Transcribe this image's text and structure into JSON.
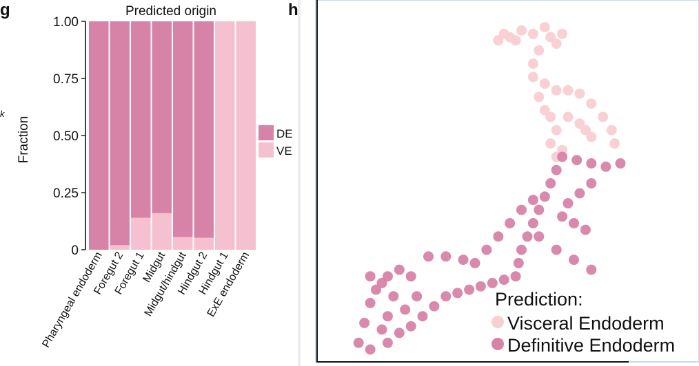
{
  "stray_mark": "k",
  "chart_data": [
    {
      "type": "bar",
      "panel_letter": "g",
      "title": "Predicted origin",
      "xlabel": "",
      "ylabel": "Fraction",
      "ylim": [
        0,
        1
      ],
      "yticks": [
        "0",
        "0.25",
        "0.50",
        "0.75",
        "1.00"
      ],
      "stacked": true,
      "grid": false,
      "legend_position": "right",
      "categories": [
        "Pharyngeal endoderm",
        "Foregut 2",
        "Foregut 1",
        "Midgut",
        "Midgut/hindgut",
        "Hindgut 2",
        "Hindgut 1",
        "ExE endoderm"
      ],
      "series": [
        {
          "name": "DE",
          "color": "#d783a8",
          "values": [
            1.0,
            0.98,
            0.86,
            0.84,
            0.945,
            0.948,
            0.0,
            0.0
          ]
        },
        {
          "name": "VE",
          "color": "#f5c0cf",
          "values": [
            0.0,
            0.02,
            0.14,
            0.16,
            0.055,
            0.052,
            1.0,
            1.0
          ]
        }
      ]
    },
    {
      "type": "scatter",
      "panel_letter": "h",
      "title": "",
      "xlabel": "",
      "ylabel": "",
      "grid": false,
      "legend_title": "Prediction:",
      "legend_position": "bottom-right",
      "series": [
        {
          "name": "Visceral Endoderm",
          "color": "#f9cfd3",
          "points": [
            [
              0.58,
              0.93
            ],
            [
              0.6,
              0.95
            ],
            [
              0.62,
              0.94
            ],
            [
              0.64,
              0.93
            ],
            [
              0.66,
              0.96
            ],
            [
              0.7,
              0.95
            ],
            [
              0.74,
              0.97
            ],
            [
              0.76,
              0.94
            ],
            [
              0.78,
              0.92
            ],
            [
              0.8,
              0.95
            ],
            [
              0.72,
              0.9
            ],
            [
              0.7,
              0.86
            ],
            [
              0.7,
              0.82
            ],
            [
              0.74,
              0.8
            ],
            [
              0.78,
              0.78
            ],
            [
              0.82,
              0.78
            ],
            [
              0.86,
              0.77
            ],
            [
              0.9,
              0.74
            ],
            [
              0.94,
              0.7
            ],
            [
              0.97,
              0.66
            ],
            [
              0.98,
              0.62
            ],
            [
              0.72,
              0.76
            ],
            [
              0.74,
              0.72
            ],
            [
              0.76,
              0.7
            ],
            [
              0.78,
              0.66
            ],
            [
              0.82,
              0.7
            ],
            [
              0.86,
              0.68
            ],
            [
              0.88,
              0.66
            ],
            [
              0.9,
              0.64
            ],
            [
              0.76,
              0.62
            ],
            [
              0.8,
              0.6
            ],
            [
              0.78,
              0.58
            ]
          ]
        },
        {
          "name": "Definitive Endoderm",
          "color": "#d783a8",
          "points": [
            [
              0.8,
              0.58
            ],
            [
              0.85,
              0.57
            ],
            [
              0.9,
              0.56
            ],
            [
              0.95,
              0.55
            ],
            [
              1.0,
              0.56
            ],
            [
              0.78,
              0.54
            ],
            [
              0.76,
              0.5
            ],
            [
              0.74,
              0.46
            ],
            [
              0.72,
              0.42
            ],
            [
              0.7,
              0.38
            ],
            [
              0.68,
              0.34
            ],
            [
              0.66,
              0.3
            ],
            [
              0.65,
              0.26
            ],
            [
              0.64,
              0.22
            ],
            [
              0.6,
              0.21
            ],
            [
              0.56,
              0.2
            ],
            [
              0.52,
              0.19
            ],
            [
              0.48,
              0.18
            ],
            [
              0.44,
              0.17
            ],
            [
              0.4,
              0.16
            ],
            [
              0.36,
              0.13
            ],
            [
              0.32,
              0.1
            ],
            [
              0.28,
              0.07
            ],
            [
              0.24,
              0.05
            ],
            [
              0.2,
              0.02
            ],
            [
              0.14,
              0.0
            ],
            [
              0.1,
              0.02
            ],
            [
              0.12,
              0.08
            ],
            [
              0.14,
              0.14
            ],
            [
              0.16,
              0.18
            ],
            [
              0.2,
              0.22
            ],
            [
              0.24,
              0.24
            ],
            [
              0.28,
              0.22
            ],
            [
              0.3,
              0.16
            ],
            [
              0.26,
              0.12
            ],
            [
              0.2,
              0.1
            ],
            [
              0.18,
              0.06
            ],
            [
              0.22,
              0.16
            ],
            [
              0.18,
              0.2
            ],
            [
              0.14,
              0.22
            ],
            [
              0.8,
              0.4
            ],
            [
              0.84,
              0.38
            ],
            [
              0.88,
              0.36
            ],
            [
              0.72,
              0.34
            ],
            [
              0.78,
              0.3
            ],
            [
              0.84,
              0.27
            ],
            [
              0.9,
              0.24
            ],
            [
              0.82,
              0.44
            ],
            [
              0.86,
              0.47
            ],
            [
              0.9,
              0.5
            ],
            [
              0.7,
              0.45
            ],
            [
              0.66,
              0.42
            ],
            [
              0.62,
              0.38
            ],
            [
              0.58,
              0.34
            ],
            [
              0.54,
              0.3
            ],
            [
              0.4,
              0.28
            ],
            [
              0.46,
              0.27
            ],
            [
              0.5,
              0.26
            ],
            [
              0.34,
              0.28
            ]
          ]
        }
      ]
    }
  ]
}
